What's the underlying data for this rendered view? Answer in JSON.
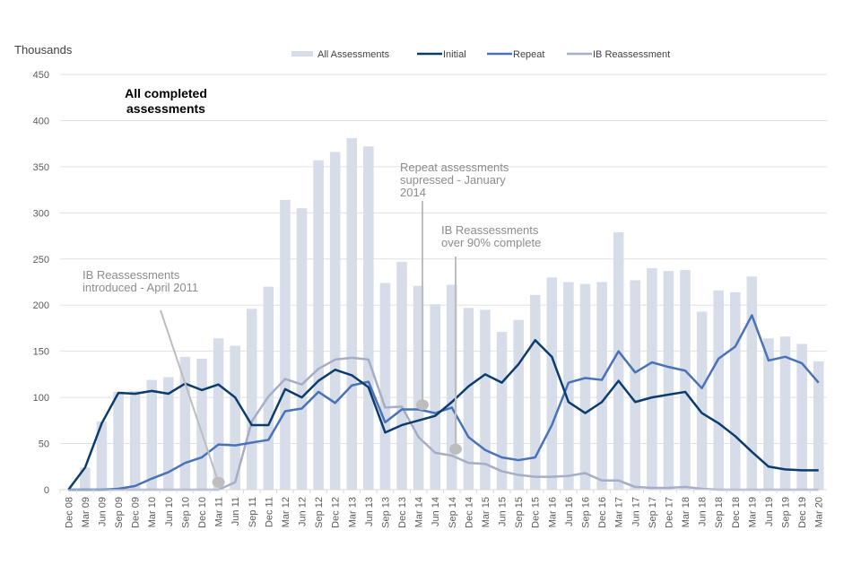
{
  "chart_data": {
    "type": "bar",
    "title": "All completed assessments",
    "ylabel": "Thousands",
    "xlabel": "",
    "ylim": [
      0,
      450
    ],
    "yticks": [
      0,
      50,
      100,
      150,
      200,
      250,
      300,
      350,
      400,
      450
    ],
    "grid": true,
    "legend_position": "top",
    "categories": [
      "Dec 08",
      "Mar 09",
      "Jun 09",
      "Sep 09",
      "Dec 09",
      "Mar 10",
      "Jun 10",
      "Sep 10",
      "Dec 10",
      "Mar 11",
      "Jun 11",
      "Sep 11",
      "Dec 11",
      "Mar 12",
      "Jun 12",
      "Sep 12",
      "Dec 12",
      "Mar 13",
      "Jun 13",
      "Sep 13",
      "Dec 13",
      "Mar 14",
      "Jun 14",
      "Sep 14",
      "Dec 14",
      "Mar 15",
      "Jun 15",
      "Sep 15",
      "Dec 15",
      "Mar 16",
      "Jun 16",
      "Sep 16",
      "Dec 16",
      "Mar 17",
      "Jun 17",
      "Sep 17",
      "Dec 17",
      "Mar 18",
      "Jun 18",
      "Sep 18",
      "Dec 18",
      "Mar 19",
      "Jun 19",
      "Sep 19",
      "Dec 19",
      "Mar 20"
    ],
    "series": [
      {
        "name": "All Assessments",
        "type": "bar",
        "color": "#d6dce8",
        "values": [
          0,
          24,
          74,
          106,
          107,
          119,
          122,
          144,
          142,
          164,
          156,
          196,
          220,
          314,
          305,
          357,
          366,
          381,
          372,
          224,
          247,
          221,
          201,
          222,
          197,
          195,
          171,
          184,
          211,
          230,
          225,
          223,
          225,
          279,
          227,
          240,
          237,
          238,
          193,
          216,
          214,
          231,
          164,
          166,
          158,
          139
        ]
      },
      {
        "name": "Initial",
        "type": "line",
        "color": "#0b3c6b",
        "values": [
          0,
          24,
          72,
          105,
          104,
          107,
          104,
          115,
          108,
          114,
          100,
          70,
          70,
          109,
          100,
          118,
          130,
          124,
          111,
          62,
          70,
          75,
          80,
          95,
          112,
          125,
          116,
          136,
          162,
          144,
          95,
          83,
          95,
          118,
          95,
          100,
          103,
          106,
          83,
          72,
          58,
          41,
          25,
          22,
          21,
          21
        ]
      },
      {
        "name": "Repeat",
        "type": "line",
        "color": "#4a72b8",
        "values": [
          0,
          0,
          0,
          1,
          4,
          12,
          19,
          29,
          35,
          49,
          48,
          51,
          54,
          85,
          88,
          106,
          94,
          113,
          117,
          73,
          87,
          87,
          83,
          89,
          57,
          43,
          35,
          32,
          35,
          70,
          116,
          121,
          119,
          150,
          127,
          138,
          133,
          129,
          110,
          142,
          155,
          189,
          140,
          144,
          137,
          116
        ]
      },
      {
        "name": "IB Reassessment",
        "type": "line",
        "color": "#a5adc7",
        "values": [
          0,
          0,
          0,
          0,
          0,
          0,
          0,
          0,
          0,
          0,
          8,
          74,
          101,
          120,
          114,
          131,
          141,
          143,
          141,
          89,
          90,
          57,
          40,
          37,
          29,
          28,
          20,
          16,
          14,
          14,
          15,
          18,
          10,
          10,
          3,
          2,
          2,
          3,
          1,
          0,
          0,
          0,
          0,
          0,
          0,
          0
        ]
      }
    ],
    "annotations": [
      {
        "text": [
          "IB Reassessments",
          "introduced - April 2011"
        ],
        "points_to": "Mar 11",
        "value": 8
      },
      {
        "text": [
          "Repeat assessments",
          "supressed - January",
          "2014"
        ],
        "points_to": "Mar 14",
        "value": 92
      },
      {
        "text": [
          "IB Reassessments",
          "over 90% complete"
        ],
        "points_to": "Sep 14",
        "value": 44
      }
    ]
  }
}
